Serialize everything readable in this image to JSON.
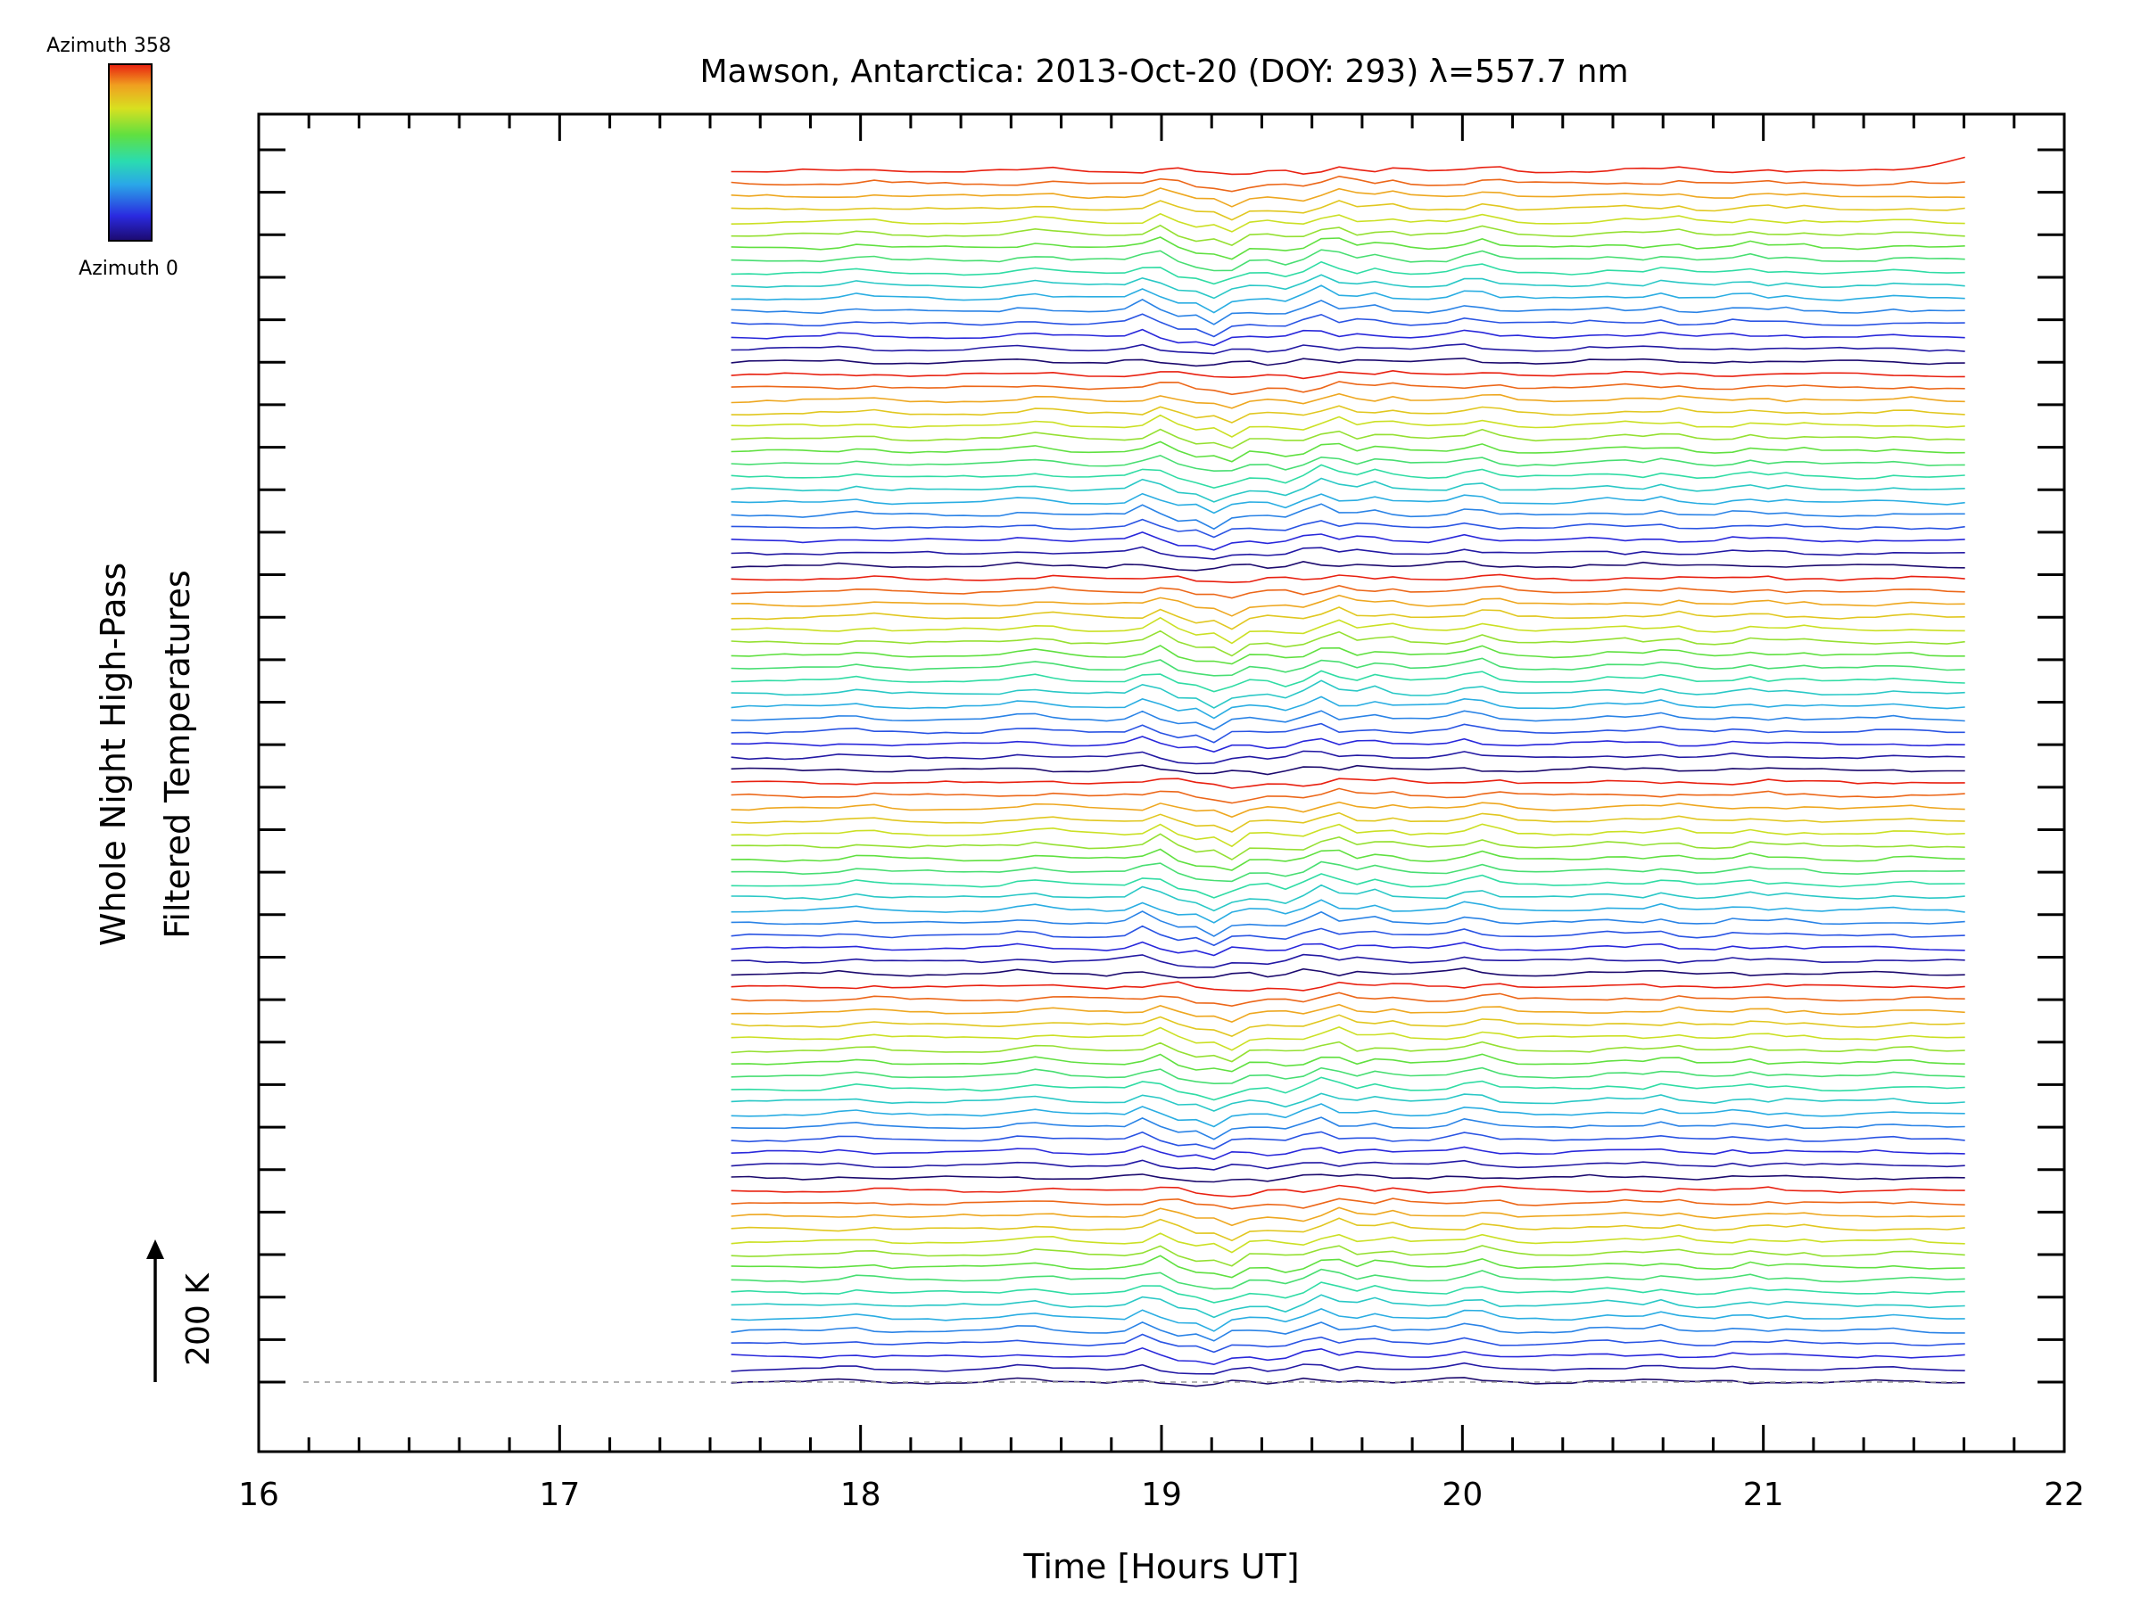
{
  "chart_data": {
    "type": "line",
    "title": "Mawson, Antarctica: 2013-Oct-20 (DOY: 293) λ=557.7 nm",
    "xlabel": "Time [Hours UT]",
    "ylabel_line1": "Whole Night High-Pass",
    "ylabel_line2": "Filtered Temperatures",
    "scale_bar_label": "200 K",
    "xlim": [
      16,
      22
    ],
    "x_ticks": [
      "16",
      "17",
      "18",
      "19",
      "20",
      "21",
      "22"
    ],
    "colorbar": {
      "top_label": "Azimuth 358",
      "bottom_label": "Azimuth 0",
      "colors": [
        "#1c0a6e",
        "#2a2ae0",
        "#2aa8e8",
        "#2adcb0",
        "#60e040",
        "#d8e020",
        "#f0a020",
        "#e82010"
      ]
    },
    "time_range": [
      17.57,
      21.67
    ],
    "series_count": 96,
    "series_groups": 6,
    "series_per_group": 16,
    "series_offset_K": 30,
    "baseline_K": 0,
    "y_range_K": [
      -30,
      2900
    ],
    "grid": false,
    "legend": "colorbar top-left"
  }
}
